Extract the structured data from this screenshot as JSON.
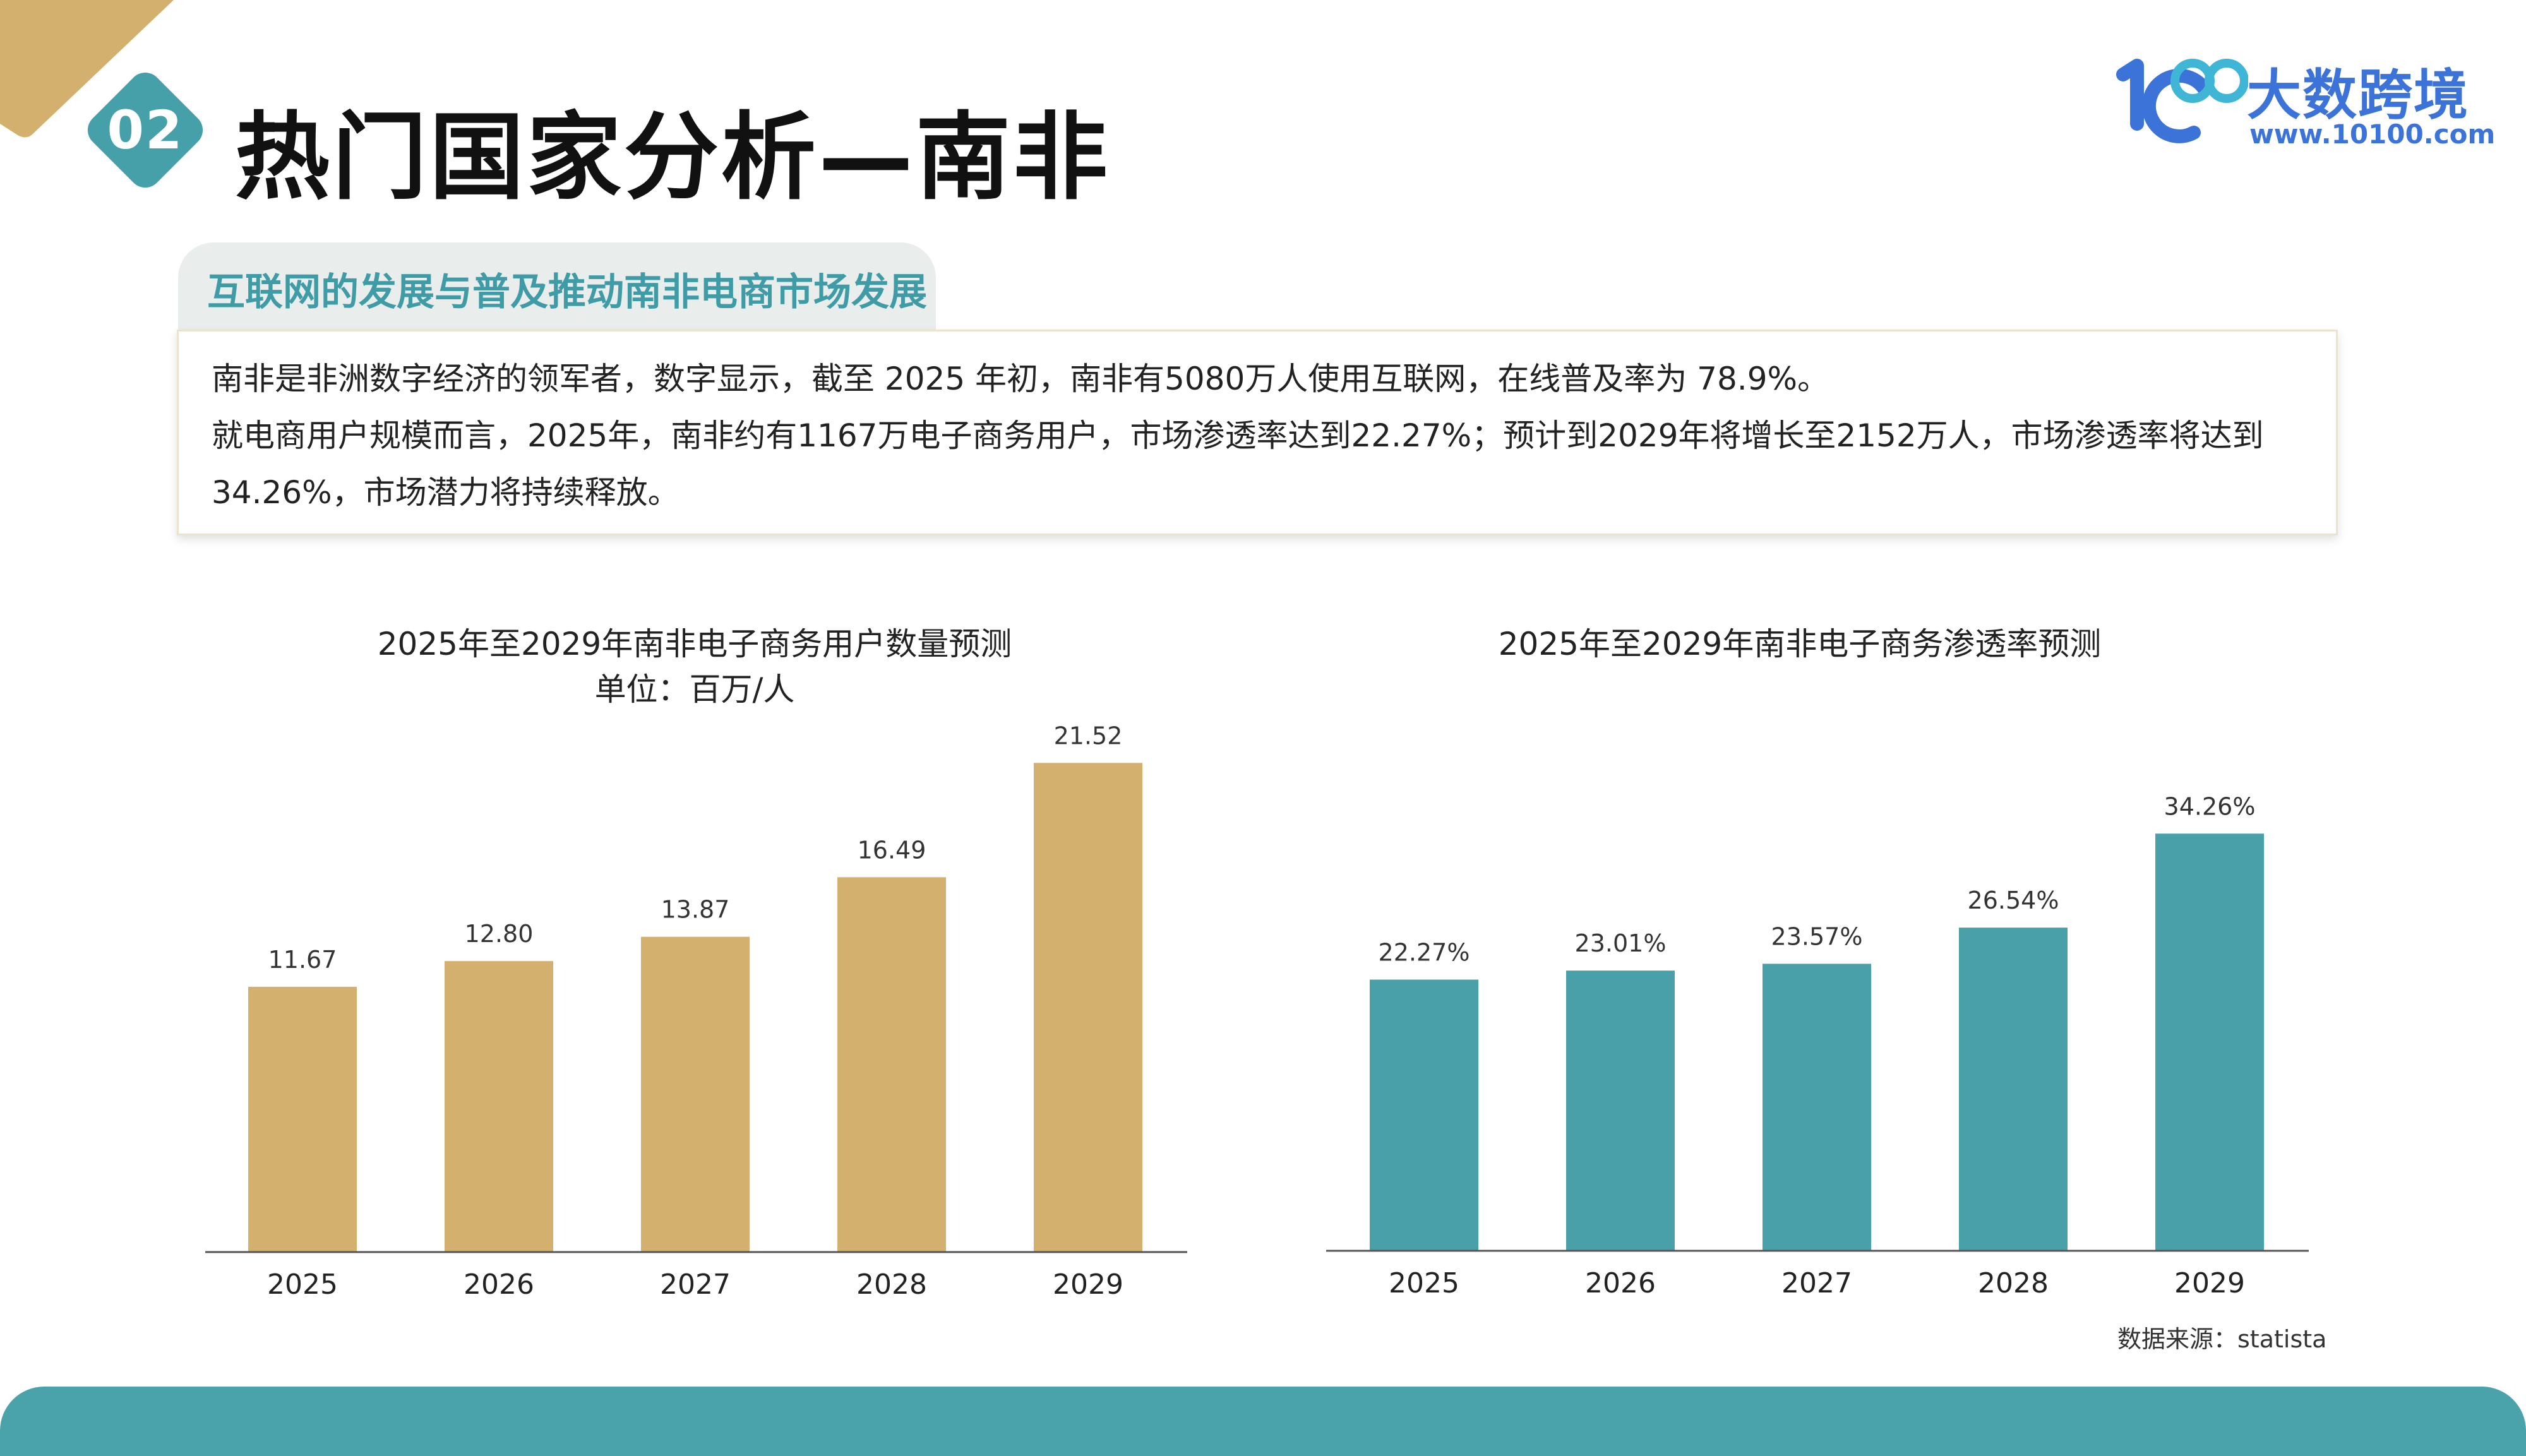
{
  "header": {
    "section_number": "02",
    "title": "热门国家分析—南非"
  },
  "brand": {
    "name_cn": "大数跨境",
    "url": "www.10100.com",
    "color": "#3b73d9"
  },
  "section": {
    "heading": "互联网的发展与普及推动南非电商市场发展",
    "paragraphs": [
      "南非是非洲数字经济的领军者，数字显示，截至 2025 年初，南非有5080万人使用互联网，在线普及率为 78.9%。",
      "就电商用户规模而言，2025年，南非约有1167万电子商务用户，市场渗透率达到22.27%；预计到2029年将增长至2152万人，市场渗透率将达到34.26%，市场潜力将持续释放。"
    ]
  },
  "chart_data": [
    {
      "type": "bar",
      "title": "2025年至2029年南非电子商务用户数量预测",
      "subtitle": "单位：百万/人",
      "categories": [
        "2025",
        "2026",
        "2027",
        "2028",
        "2029"
      ],
      "values": [
        11.67,
        12.8,
        13.87,
        16.49,
        21.52
      ],
      "labels": [
        "11.67",
        "12.80",
        "13.87",
        "16.49",
        "21.52"
      ],
      "ylim": [
        0,
        22.5
      ],
      "xlabel": "",
      "ylabel": "",
      "grid": false,
      "color": "#d3b06e"
    },
    {
      "type": "bar",
      "title": "2025年至2029年南非电子商务渗透率预测",
      "categories": [
        "2025",
        "2026",
        "2027",
        "2028",
        "2029"
      ],
      "values": [
        22.27,
        23.01,
        23.57,
        26.54,
        34.26
      ],
      "labels": [
        "22.27%",
        "23.01%",
        "23.57%",
        "26.54%",
        "34.26%"
      ],
      "ylim": [
        0,
        42
      ],
      "xlabel": "",
      "ylabel": "",
      "grid": false,
      "color": "#4aa0a8"
    }
  ],
  "footer": {
    "source": "数据来源：statista"
  },
  "colors": {
    "accent_gold": "#d3b06e",
    "accent_teal": "#4aa3ab",
    "badge": "#45a0a9"
  }
}
